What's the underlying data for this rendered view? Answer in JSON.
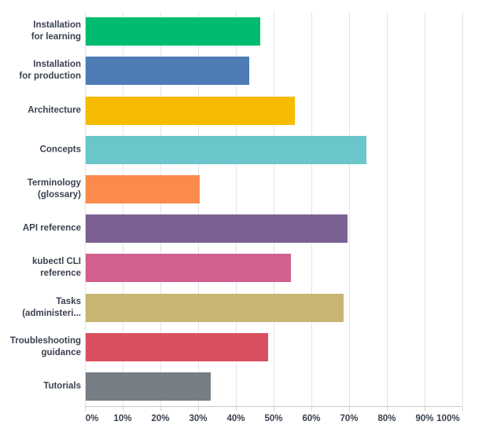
{
  "chart_data": {
    "type": "bar",
    "orientation": "horizontal",
    "title": "",
    "xlabel": "",
    "ylabel": "",
    "xlim": [
      0,
      100
    ],
    "grid": "vertical",
    "legend": "none",
    "x_ticks": [
      "0%",
      "10%",
      "20%",
      "30%",
      "40%",
      "50%",
      "60%",
      "70%",
      "80%",
      "90%",
      "100%"
    ],
    "categories": [
      {
        "label": "Installation for learning",
        "lines": [
          "Installation",
          "for learning"
        ],
        "value": 46.3,
        "color": "#00bc70"
      },
      {
        "label": "Installation for production",
        "lines": [
          "Installation",
          "for production"
        ],
        "value": 43.3,
        "color": "#4d7cb7"
      },
      {
        "label": "Architecture",
        "lines": [
          "Architecture"
        ],
        "value": 55.5,
        "color": "#f6bb00"
      },
      {
        "label": "Concepts",
        "lines": [
          "Concepts"
        ],
        "value": 74.4,
        "color": "#6ac6cb"
      },
      {
        "label": "Terminology (glossary)",
        "lines": [
          "Terminology",
          "(glossary)"
        ],
        "value": 30.3,
        "color": "#fb8b4d"
      },
      {
        "label": "API reference",
        "lines": [
          "API reference"
        ],
        "value": 69.3,
        "color": "#7a6093"
      },
      {
        "label": "kubectl CLI reference",
        "lines": [
          "kubectl CLI",
          "reference"
        ],
        "value": 54.4,
        "color": "#d2608f"
      },
      {
        "label": "Tasks (administeri...",
        "lines": [
          "Tasks",
          "(administeri..."
        ],
        "value": 68.3,
        "color": "#c8b574"
      },
      {
        "label": "Troubleshooting guidance",
        "lines": [
          "Troubleshooting",
          "guidance"
        ],
        "value": 48.3,
        "color": "#da5060"
      },
      {
        "label": "Tutorials",
        "lines": [
          "Tutorials"
        ],
        "value": 33.1,
        "color": "#767d84"
      }
    ],
    "style": {
      "gridline_color": "#e4e4e8",
      "axis_line_color": "#c9c9ce",
      "label_color": "#3a4150",
      "background": "#ffffff"
    }
  }
}
